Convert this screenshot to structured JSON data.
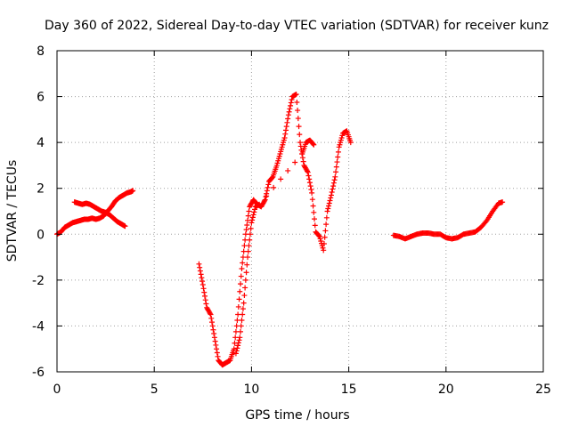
{
  "chart_data": {
    "type": "scatter",
    "title": "Day 360 of 2022, Sidereal Day-to-day VTEC variation (SDTVAR) for receiver kunz",
    "xlabel": "GPS time / hours",
    "ylabel": "SDTVAR / TECUs",
    "xlim": [
      0,
      25
    ],
    "ylim": [
      -6,
      8
    ],
    "xticks": [
      0,
      5,
      10,
      15,
      20,
      25
    ],
    "yticks": [
      -6,
      -4,
      -2,
      0,
      2,
      4,
      6,
      8
    ],
    "grid": true,
    "marker": "plus",
    "color": "#ff0000",
    "series": [
      {
        "x": [
          0.0,
          0.2,
          0.4,
          0.6,
          0.8,
          1.0,
          1.2,
          1.4,
          1.6,
          1.8,
          2.0,
          2.2,
          2.4,
          2.6,
          2.8,
          3.0,
          3.2,
          3.4,
          3.6,
          3.8,
          3.9
        ],
        "y": [
          0.0,
          0.1,
          0.3,
          0.4,
          0.5,
          0.55,
          0.6,
          0.65,
          0.65,
          0.7,
          0.65,
          0.7,
          0.8,
          1.0,
          1.2,
          1.45,
          1.6,
          1.7,
          1.8,
          1.85,
          1.9
        ]
      },
      {
        "x": [
          0.9,
          1.1,
          1.3,
          1.5,
          1.7,
          1.9,
          2.1,
          2.3,
          2.5,
          2.7,
          2.9,
          3.1,
          3.3,
          3.5
        ],
        "y": [
          1.4,
          1.35,
          1.3,
          1.35,
          1.3,
          1.2,
          1.1,
          1.0,
          0.95,
          0.85,
          0.7,
          0.55,
          0.45,
          0.35
        ]
      },
      {
        "x": [
          7.3,
          7.5,
          7.7,
          7.9,
          8.1,
          8.3,
          8.5,
          8.7,
          8.9,
          9.1,
          9.3,
          9.5,
          9.7,
          9.9,
          10.1,
          10.3,
          10.5,
          10.7,
          10.9,
          11.1,
          11.3,
          11.5,
          11.7,
          11.9,
          12.1,
          12.3,
          12.5,
          12.7,
          12.9,
          13.1,
          13.3,
          13.5,
          13.7,
          13.9,
          14.1,
          14.3,
          14.5,
          14.7,
          14.9,
          15.1
        ],
        "y": [
          -1.3,
          -2.2,
          -3.2,
          -3.5,
          -4.5,
          -5.5,
          -5.7,
          -5.6,
          -5.5,
          -5.0,
          -3.5,
          -1.5,
          0.0,
          1.2,
          1.5,
          1.3,
          1.2,
          1.5,
          2.3,
          2.5,
          3.0,
          3.6,
          4.2,
          5.2,
          6.0,
          6.1,
          4.0,
          3.0,
          2.7,
          1.8,
          0.1,
          -0.1,
          -0.7,
          1.0,
          1.7,
          2.5,
          3.8,
          4.4,
          4.5,
          4.0
        ]
      },
      {
        "x": [
          9.2,
          9.4,
          9.6,
          9.8,
          10.0,
          10.2,
          10.4,
          12.6,
          12.8,
          13.0,
          13.2
        ],
        "y": [
          -5.2,
          -4.5,
          -3.0,
          -1.0,
          0.5,
          1.2,
          1.3,
          3.5,
          4.0,
          4.1,
          3.9
        ]
      },
      {
        "x": [
          17.3,
          17.6,
          17.9,
          18.2,
          18.5,
          18.8,
          19.1,
          19.4,
          19.7,
          20.0,
          20.3,
          20.6,
          20.9,
          21.2,
          21.5,
          21.8,
          22.1,
          22.4,
          22.7,
          22.9
        ],
        "y": [
          -0.05,
          -0.1,
          -0.2,
          -0.1,
          0.0,
          0.05,
          0.05,
          0.0,
          0.0,
          -0.15,
          -0.2,
          -0.15,
          0.0,
          0.05,
          0.1,
          0.3,
          0.6,
          1.0,
          1.35,
          1.4
        ]
      }
    ]
  }
}
